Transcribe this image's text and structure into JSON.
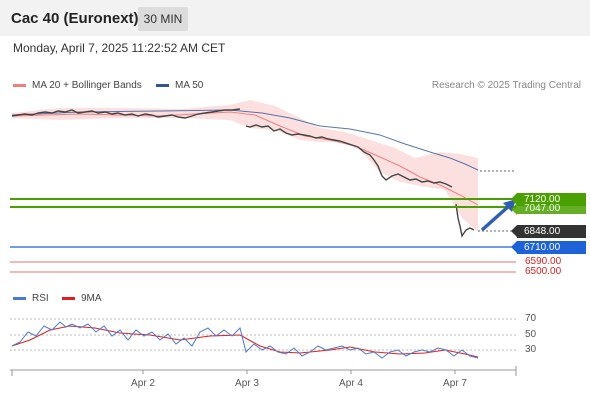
{
  "header": {
    "title": "Cac 40 (Euronext)",
    "timeframe": "30 MIN"
  },
  "datetime": "Monday, April 7, 2025 11:22:52 AM CET",
  "legend": {
    "ma20_label": "MA 20 + Bollinger Bands",
    "ma20_color": "#f08080",
    "ma50_label": "MA 50",
    "ma50_color": "#2f5597",
    "rsi_label": "RSI",
    "rsi_color": "#4a7bd0",
    "ma9_label": "9MA",
    "ma9_color": "#e02020"
  },
  "credit": "Research © 2025 Trading Central",
  "price_labels": {
    "target_high": "7120.00",
    "target_low": "7047.00",
    "current": "6848.00",
    "pivot": "6710.00",
    "support1": "6590.00",
    "support2": "6500.00"
  },
  "rsi_levels": [
    "70",
    "50",
    "30"
  ],
  "x_axis": [
    "Apr 2",
    "Apr 3",
    "Apr 4",
    "Apr 7"
  ],
  "colors": {
    "green": "#4aa000",
    "blue": "#1e62d8",
    "dark": "#333333",
    "red": "#d32222"
  }
}
